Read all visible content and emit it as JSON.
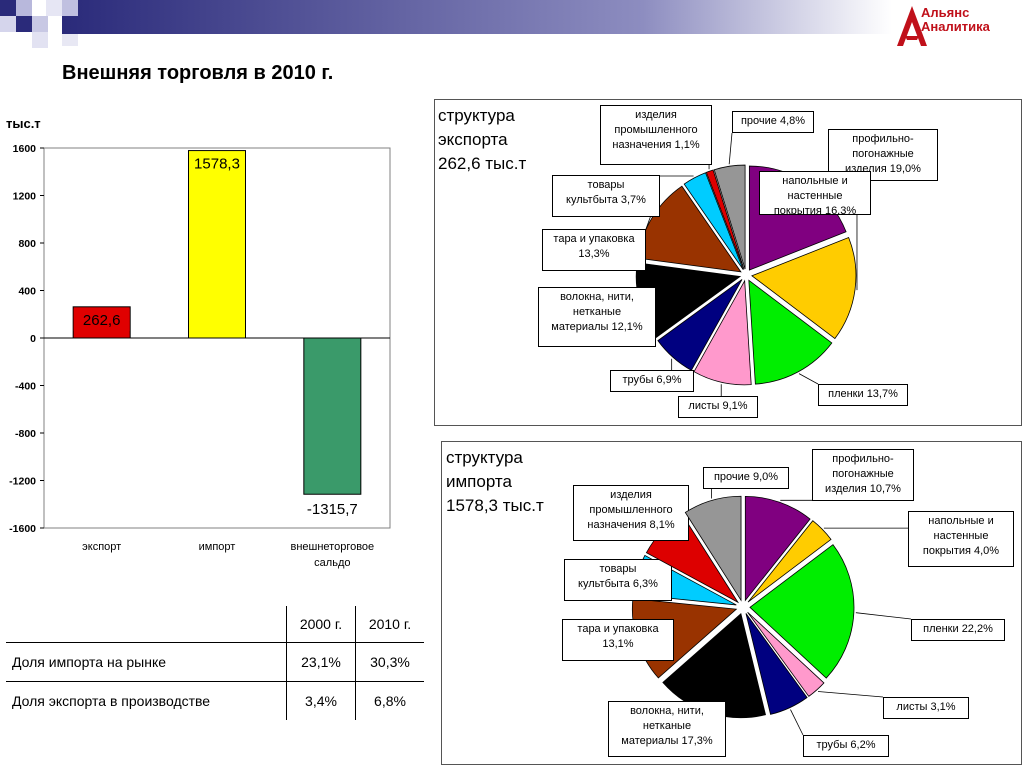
{
  "title": "Внешняя торговля в 2010 г.",
  "logo": {
    "line1": "Альянс",
    "line2": "Аналитика"
  },
  "colors": {
    "export": "#e00000",
    "import": "#ffff00",
    "balance": "#3a9a6a",
    "header_bar": "#3b3b8f"
  },
  "chart_data": [
    {
      "type": "bar",
      "title": "",
      "ylabel": "тыс.т",
      "categories": [
        "экспорт",
        "импорт",
        "внешнеторговое сальдо"
      ],
      "values": [
        262.6,
        1578.3,
        -1315.7
      ],
      "data_labels": [
        "262,6",
        "1578,3",
        "-1315,7"
      ],
      "ylim": [
        -1600,
        1600
      ],
      "yticks": [
        1600,
        1200,
        800,
        400,
        0,
        -400,
        -800,
        -1200,
        -1600
      ],
      "grid": false,
      "legend": "none"
    },
    {
      "type": "pie",
      "title": "структура\nэкспорта\n262,6 тыс.т",
      "slices": [
        {
          "label": "профильно-\nпогонажные\nизделия 19,0%",
          "value": 19.0,
          "color": "#800080"
        },
        {
          "label": "напольные и\nнастенные\nпокрытия 16,3%",
          "value": 16.3,
          "color": "#ffcc00"
        },
        {
          "label": "пленки 13,7%",
          "value": 13.7,
          "color": "#00ee00"
        },
        {
          "label": "листы 9,1%",
          "value": 9.1,
          "color": "#ff99cc"
        },
        {
          "label": "трубы 6,9%",
          "value": 6.9,
          "color": "#000080"
        },
        {
          "label": "волокна, нити,\nнетканые\nматериалы 12,1%",
          "value": 12.1,
          "color": "#000000"
        },
        {
          "label": "тара и упаковка\n13,3%",
          "value": 13.3,
          "color": "#993300"
        },
        {
          "label": "товары\nкультбыта 3,7%",
          "value": 3.7,
          "color": "#00ccff"
        },
        {
          "label": "изделия\nпромышленного\nназначения 1,1%",
          "value": 1.1,
          "color": "#dd0000"
        },
        {
          "label": "прочие 4,8%",
          "value": 4.8,
          "color": "#969696"
        }
      ]
    },
    {
      "type": "pie",
      "title": "структура\nимпорта\n1578,3 тыс.т",
      "slices": [
        {
          "label": "профильно-\nпогонажные\nизделия 10,7%",
          "value": 10.7,
          "color": "#800080"
        },
        {
          "label": "напольные и\nнастенные\nпокрытия 4,0%",
          "value": 4.0,
          "color": "#ffcc00"
        },
        {
          "label": "пленки 22,2%",
          "value": 22.2,
          "color": "#00ee00"
        },
        {
          "label": "листы 3,1%",
          "value": 3.1,
          "color": "#ff99cc"
        },
        {
          "label": "трубы 6,2%",
          "value": 6.2,
          "color": "#000080"
        },
        {
          "label": "волокна, нити,\nнетканые\nматериалы 17,3%",
          "value": 17.3,
          "color": "#000000"
        },
        {
          "label": "тара и упаковка\n13,1%",
          "value": 13.1,
          "color": "#993300"
        },
        {
          "label": "товары\nкультбыта 6,3%",
          "value": 6.3,
          "color": "#00ccff"
        },
        {
          "label": "изделия\nпромышленного\nназначения 8,1%",
          "value": 8.1,
          "color": "#dd0000"
        },
        {
          "label": "прочие 9,0%",
          "value": 9.0,
          "color": "#969696"
        }
      ]
    },
    {
      "type": "table",
      "columns": [
        "",
        "2000 г.",
        "2010 г."
      ],
      "rows": [
        [
          "Доля импорта на рынке",
          "23,1%",
          "30,3%"
        ],
        [
          "Доля экспорта в производстве",
          "3,4%",
          "6,8%"
        ]
      ]
    }
  ]
}
